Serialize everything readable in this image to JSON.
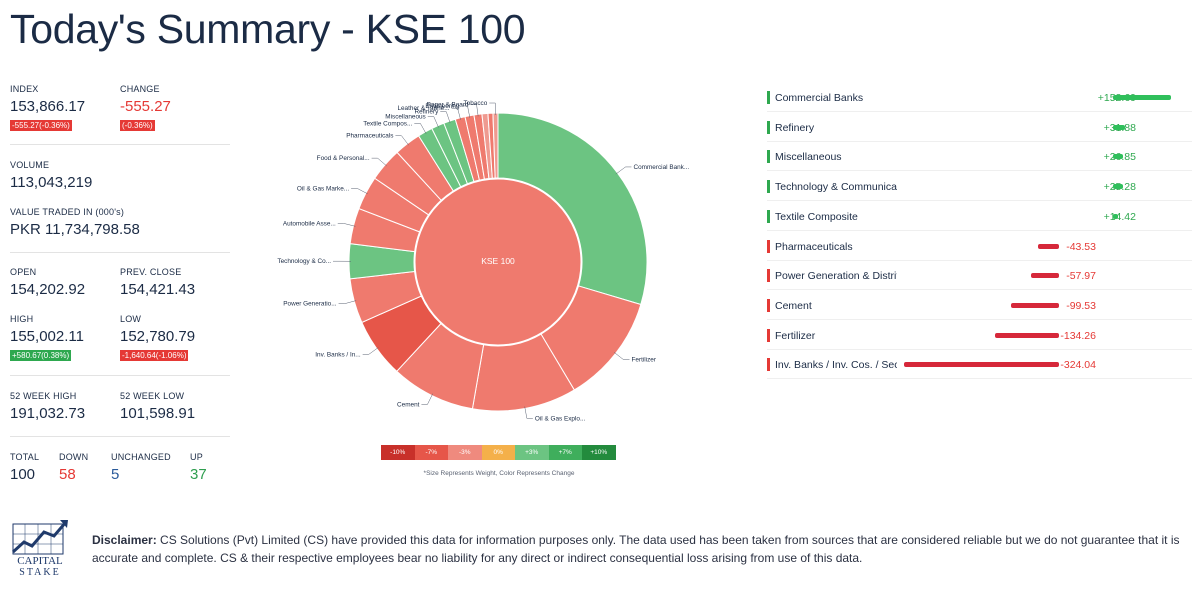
{
  "title": "Today's Summary - KSE 100",
  "stats": {
    "index_label": "INDEX",
    "index_value": "153,866.17",
    "index_badge": "-555.27(-0.36%)",
    "change_label": "CHANGE",
    "change_value": "-555.27",
    "change_badge": "(-0.36%)",
    "volume_label": "VOLUME",
    "volume_value": "113,043,219",
    "traded_label": "VALUE TRADED IN (000's)",
    "traded_value": "PKR 11,734,798.58",
    "open_label": "OPEN",
    "open_value": "154,202.92",
    "prev_label": "PREV. CLOSE",
    "prev_value": "154,421.43",
    "high_label": "HIGH",
    "high_value": "155,002.11",
    "high_badge": "+580.67(0.38%)",
    "low_label": "LOW",
    "low_value": "152,780.79",
    "low_badge": "-1,640.64(-1.06%)",
    "w52high_label": "52 WEEK HIGH",
    "w52high_value": "191,032.73",
    "w52low_label": "52 WEEK LOW",
    "w52low_value": "101,598.91",
    "total_label": "TOTAL",
    "total_value": "100",
    "down_label": "DOWN",
    "down_value": "58",
    "unch_label": "UNCHANGED",
    "unch_value": "5",
    "up_label": "UP",
    "up_value": "37"
  },
  "chart_data": {
    "type": "pie",
    "center_label": "KSE 100",
    "slices": [
      {
        "label": "Commercial Bank...",
        "weight": 27.5,
        "color": "#6cc482"
      },
      {
        "label": "Fertilizer",
        "weight": 11.0,
        "color": "#ef7a6e"
      },
      {
        "label": "Oil & Gas Explo...",
        "weight": 10.5,
        "color": "#ef7a6e"
      },
      {
        "label": "Cement",
        "weight": 8.5,
        "color": "#ef7a6e"
      },
      {
        "label": "Inv. Banks / In...",
        "weight": 6.0,
        "color": "#e65649"
      },
      {
        "label": "Power Generatio...",
        "weight": 4.5,
        "color": "#ef7a6e"
      },
      {
        "label": "Technology & Co...",
        "weight": 3.5,
        "color": "#6cc482"
      },
      {
        "label": "Automobile Asse...",
        "weight": 3.6,
        "color": "#ef7a6e"
      },
      {
        "label": "Oil & Gas Marke...",
        "weight": 3.4,
        "color": "#ef7a6e"
      },
      {
        "label": "Food & Personal...",
        "weight": 3.4,
        "color": "#ef7a6e"
      },
      {
        "label": "Pharmaceuticals",
        "weight": 2.7,
        "color": "#ef7a6e"
      },
      {
        "label": "Textile Compos...",
        "weight": 1.5,
        "color": "#6cc482"
      },
      {
        "label": "Miscellaneous",
        "weight": 1.3,
        "color": "#6cc482"
      },
      {
        "label": "Refinery",
        "weight": 1.2,
        "color": "#6cc482"
      },
      {
        "label": "Leather & Tanne...",
        "weight": 1.0,
        "color": "#ef7a6e"
      },
      {
        "label": "Engineering",
        "weight": 0.9,
        "color": "#ef7a6e"
      },
      {
        "label": "Paper & Board",
        "weight": 0.8,
        "color": "#ef7a6e"
      },
      {
        "label": "",
        "weight": 0.6,
        "color": "#ef9a90"
      },
      {
        "label": "",
        "weight": 0.5,
        "color": "#ef7a6e"
      },
      {
        "label": "Tobacco",
        "weight": 0.5,
        "color": "#ef9a90"
      }
    ],
    "legend_scale": [
      {
        "label": "-10%",
        "color": "#c8302a"
      },
      {
        "label": "-7%",
        "color": "#e65649"
      },
      {
        "label": "-3%",
        "color": "#ef8a7e"
      },
      {
        "label": "0%",
        "color": "#f4b04a"
      },
      {
        "label": "+3%",
        "color": "#6cc482"
      },
      {
        "label": "+7%",
        "color": "#3fae5c"
      },
      {
        "label": "+10%",
        "color": "#238b3d"
      }
    ],
    "note": "*Size Represents Weight, Color Represents Change"
  },
  "sectors": [
    {
      "name": "Commercial Banks",
      "value": "+152.69",
      "num": 152.69
    },
    {
      "name": "Refinery",
      "value": "+31.88",
      "num": 31.88
    },
    {
      "name": "Miscellaneous",
      "value": "+26.85",
      "num": 26.85
    },
    {
      "name": "Technology & Communicati",
      "value": "+25.28",
      "num": 25.28
    },
    {
      "name": "Textile Composite",
      "value": "+14.42",
      "num": 14.42
    },
    {
      "name": "Pharmaceuticals",
      "value": "-43.53",
      "num": -43.53
    },
    {
      "name": "Power Generation & Distrit",
      "value": "-57.97",
      "num": -57.97
    },
    {
      "name": "Cement",
      "value": "-99.53",
      "num": -99.53
    },
    {
      "name": "Fertilizer",
      "value": "-134.26",
      "num": -134.26
    },
    {
      "name": "Inv. Banks / Inv. Cos. / Secur",
      "value": "-324.04",
      "num": -324.04
    }
  ],
  "colors": {
    "positive": "#2ea84f",
    "negative": "#e53935",
    "bar_pos": "#2fbf5b",
    "bar_neg": "#d6283a"
  },
  "logo": {
    "line1": "CAPITAL",
    "line2": "STAKE",
    "icon": "rising-chart-logo"
  },
  "disclaimer": {
    "bold": "Disclaimer:",
    "text": " CS Solutions (Pvt) Limited (CS) have provided this data for information purposes only. The data used has been taken from sources that are considered reliable but we do not guarantee that it is accurate and complete. CS & their respective employees bear no liability for any direct or indirect consequential loss arising from use of this data."
  }
}
